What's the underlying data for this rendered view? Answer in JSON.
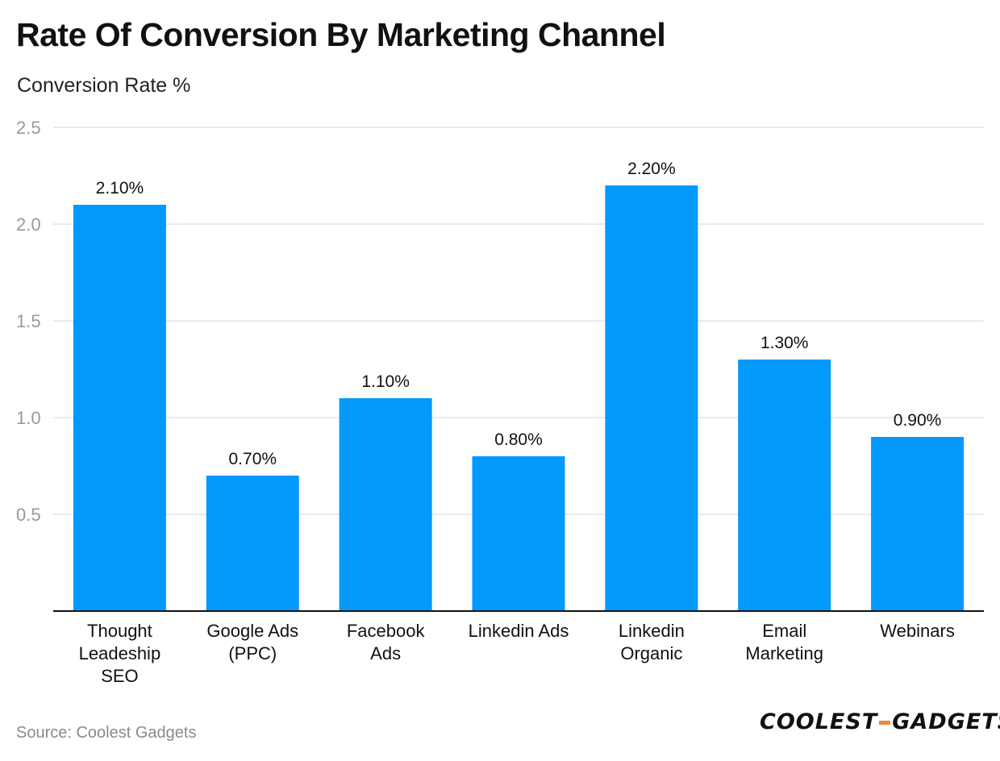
{
  "chart_data": {
    "type": "bar",
    "title": "Rate Of Conversion By Marketing Channel",
    "ylabel": "Conversion Rate %",
    "xlabel": "",
    "categories": [
      [
        "Thought",
        "Leadeship",
        "SEO"
      ],
      [
        "Google Ads",
        "(PPC)"
      ],
      [
        "Facebook",
        "Ads"
      ],
      [
        "Linkedin Ads"
      ],
      [
        "Linkedin",
        "Organic"
      ],
      [
        "Email",
        "Marketing"
      ],
      [
        "Webinars"
      ]
    ],
    "values": [
      2.1,
      0.7,
      1.1,
      0.8,
      2.2,
      1.3,
      0.9
    ],
    "data_labels": [
      "2.10%",
      "0.70%",
      "1.10%",
      "0.80%",
      "2.20%",
      "1.30%",
      "0.90%"
    ],
    "yticks": [
      "2.5",
      "2.0",
      "1.5",
      "1.0",
      "0.5"
    ],
    "ytick_values": [
      2.5,
      2.0,
      1.5,
      1.0,
      0.5
    ],
    "ylim": [
      0,
      2.5
    ],
    "grid": true,
    "bar_color": "#0499fd",
    "grid_color": "#e3e3e3",
    "tick_color": "#999999"
  },
  "footer": {
    "source": "Source: Coolest Gadgets",
    "logo_left": "COOLEST",
    "logo_right": "GADGETS",
    "logo_dash_color": "#f0883c"
  }
}
